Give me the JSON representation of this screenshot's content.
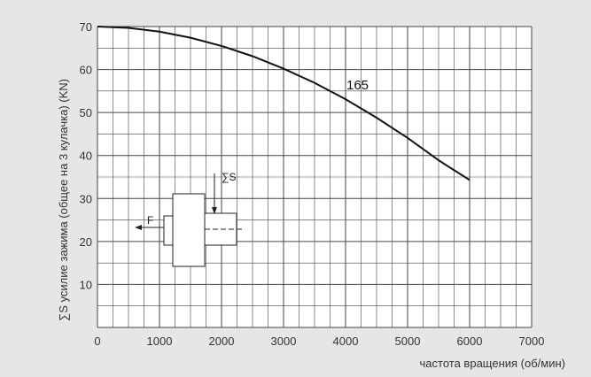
{
  "chart_data": {
    "type": "line",
    "title": "",
    "xlabel": "частота вращения (об/мин)",
    "ylabel": "∑S усилие зажима (общее на 3 кулачка) (KN)",
    "xlim": [
      0,
      7000
    ],
    "ylim": [
      0,
      70
    ],
    "x_ticks": [
      "0",
      "1000",
      "2000",
      "3000",
      "4000",
      "5000",
      "6000",
      "7000"
    ],
    "y_ticks": [
      "10",
      "20",
      "30",
      "40",
      "50",
      "60",
      "70"
    ],
    "grid": true,
    "series": [
      {
        "name": "165",
        "x": [
          0,
          500,
          1000,
          1500,
          2000,
          2500,
          3000,
          3500,
          4000,
          4500,
          5000,
          5500,
          6000
        ],
        "y": [
          70,
          69.7,
          68.8,
          67.4,
          65.5,
          63.1,
          60.2,
          56.9,
          53.1,
          48.8,
          44.1,
          38.9,
          34.3
        ]
      }
    ],
    "annotations": {
      "curve_label": "165"
    },
    "inset": {
      "force_label": "F",
      "sum_label": "∑S"
    },
    "colors": {
      "background": "#e6e6e6",
      "plot": "#ffffff",
      "curve": "#111111",
      "grid": "#555555"
    }
  }
}
